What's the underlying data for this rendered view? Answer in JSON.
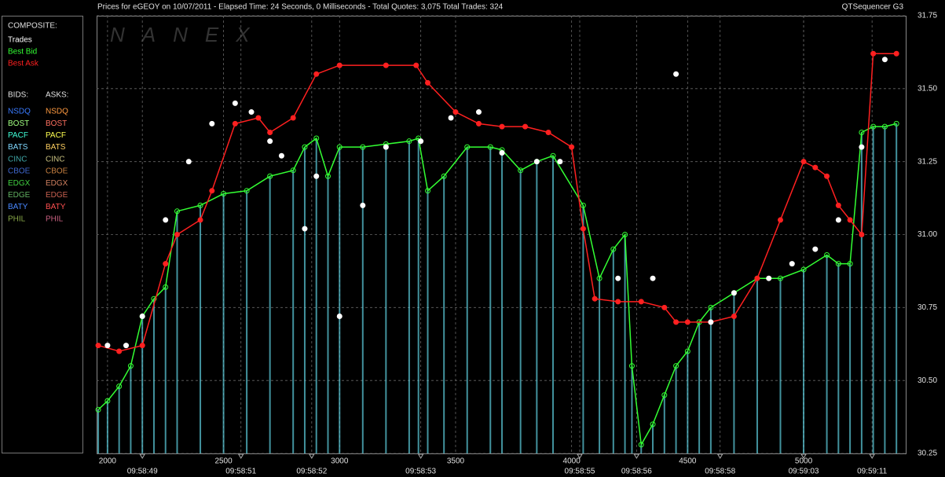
{
  "chart_data": {
    "type": "line",
    "title": "Prices for  eGEOY  on  10/07/2011  -  Elapsed Time: 24 Seconds, 0 Milliseconds  -  Total Quotes: 3,075  Total Trades: 324",
    "source": "QTSequencer G3",
    "watermark": "NANEX",
    "composite_heading": "COMPOSITE:",
    "bids_heading": "BIDS:",
    "asks_heading": "ASKS:",
    "exchanges": [
      {
        "name": "NSDQ",
        "bid_color": "#3a7bff",
        "ask_color": "#ff9a40"
      },
      {
        "name": "BOST",
        "bid_color": "#a0ff80",
        "ask_color": "#ff7060"
      },
      {
        "name": "PACF",
        "bid_color": "#40ffd8",
        "ask_color": "#ffff50"
      },
      {
        "name": "BATS",
        "bid_color": "#80d8ff",
        "ask_color": "#ffd060"
      },
      {
        "name": "CINC",
        "bid_color": "#40a8a8",
        "ask_color": "#c8c080"
      },
      {
        "name": "CBOE",
        "bid_color": "#4068d0",
        "ask_color": "#c88040"
      },
      {
        "name": "EDGX",
        "bid_color": "#40d040",
        "ask_color": "#d08060"
      },
      {
        "name": "EDGE",
        "bid_color": "#60b060",
        "ask_color": "#c86050"
      },
      {
        "name": "BATY",
        "bid_color": "#4888ff",
        "ask_color": "#ff5050"
      },
      {
        "name": "PHIL",
        "bid_color": "#88a848",
        "ask_color": "#c86080"
      }
    ],
    "series": [
      {
        "name": "Best Bid",
        "color": "#33ff33",
        "drop_color": "#5fd0e0",
        "style": "line",
        "x": [
          1960,
          2000,
          2050,
          2100,
          2150,
          2200,
          2250,
          2300,
          2400,
          2500,
          2600,
          2700,
          2800,
          2850,
          2900,
          2950,
          3000,
          3100,
          3200,
          3300,
          3340,
          3380,
          3450,
          3550,
          3650,
          3700,
          3780,
          3850,
          3920,
          4050,
          4120,
          4180,
          4230,
          4260,
          4300,
          4350,
          4400,
          4450,
          4500,
          4550,
          4600,
          4700,
          4800,
          4900,
          5000,
          5100,
          5150,
          5200,
          5250,
          5300,
          5350,
          5400
        ],
        "values": [
          30.4,
          30.43,
          30.48,
          30.55,
          30.72,
          30.78,
          30.82,
          31.08,
          31.1,
          31.14,
          31.15,
          31.2,
          31.22,
          31.3,
          31.33,
          31.2,
          31.3,
          31.3,
          31.31,
          31.32,
          31.33,
          31.15,
          31.2,
          31.3,
          31.3,
          31.29,
          31.22,
          31.25,
          31.27,
          31.1,
          30.85,
          30.95,
          31.0,
          30.55,
          30.28,
          30.35,
          30.45,
          30.55,
          30.6,
          30.7,
          30.75,
          30.8,
          30.85,
          30.85,
          30.88,
          30.93,
          30.9,
          30.9,
          31.35,
          31.37,
          31.37,
          31.38
        ]
      },
      {
        "name": "Best Ask",
        "color": "#ff2020",
        "style": "line",
        "x": [
          1960,
          2050,
          2150,
          2250,
          2300,
          2400,
          2450,
          2550,
          2650,
          2700,
          2800,
          2900,
          3000,
          3200,
          3330,
          3380,
          3500,
          3600,
          3700,
          3800,
          3900,
          4000,
          4050,
          4100,
          4200,
          4300,
          4400,
          4450,
          4500,
          4600,
          4700,
          4800,
          4900,
          5000,
          5050,
          5100,
          5150,
          5200,
          5250,
          5300,
          5400
        ],
        "values": [
          30.62,
          30.6,
          30.62,
          30.9,
          31.0,
          31.05,
          31.15,
          31.38,
          31.4,
          31.35,
          31.4,
          31.55,
          31.58,
          31.58,
          31.58,
          31.52,
          31.42,
          31.38,
          31.37,
          31.37,
          31.35,
          31.3,
          31.02,
          30.78,
          30.77,
          30.77,
          30.75,
          30.7,
          30.7,
          30.7,
          30.72,
          30.85,
          31.05,
          31.25,
          31.23,
          31.2,
          31.1,
          31.05,
          31.0,
          31.62,
          31.62
        ]
      },
      {
        "name": "Trades",
        "color": "#ffffff",
        "style": "points",
        "x": [
          2000,
          2080,
          2150,
          2250,
          2350,
          2450,
          2550,
          2620,
          2700,
          2750,
          2850,
          2900,
          3000,
          3100,
          3200,
          3350,
          3480,
          3600,
          3700,
          3850,
          3950,
          4200,
          4350,
          4450,
          4600,
          4700,
          4850,
          4950,
          5050,
          5150,
          5250,
          5350
        ],
        "values": [
          30.62,
          30.62,
          30.72,
          31.05,
          31.25,
          31.38,
          31.45,
          31.42,
          31.32,
          31.27,
          31.02,
          31.2,
          30.72,
          31.1,
          31.3,
          31.32,
          31.4,
          31.42,
          31.28,
          31.25,
          31.25,
          30.85,
          30.85,
          31.55,
          30.7,
          30.8,
          30.85,
          30.9,
          30.95,
          31.05,
          31.3,
          31.6
        ]
      }
    ],
    "xlim": [
      1953,
      5440
    ],
    "xticks": [
      2000,
      2500,
      3000,
      3500,
      4000,
      4500,
      5000
    ],
    "time_ticks": [
      {
        "value": 2150,
        "label": "09:58:49"
      },
      {
        "value": 2575,
        "label": "09:58:51"
      },
      {
        "value": 2880,
        "label": "09:58:52"
      },
      {
        "value": 3350,
        "label": "09:58:53"
      },
      {
        "value": 4035,
        "label": "09:58:55"
      },
      {
        "value": 4280,
        "label": "09:58:56"
      },
      {
        "value": 4640,
        "label": "09:58:58"
      },
      {
        "value": 5000,
        "label": "09:59:03"
      },
      {
        "value": 5295,
        "label": "09:59:11"
      }
    ],
    "ylim": [
      30.25,
      31.75
    ],
    "yticks": [
      30.25,
      {
        "value": 30.5,
        "label": "30.50"
      },
      30.75,
      {
        "value": 31,
        "label": "31.00"
      },
      31.25,
      {
        "value": 31.5,
        "label": "31.50"
      },
      31.75
    ],
    "grid": true
  }
}
